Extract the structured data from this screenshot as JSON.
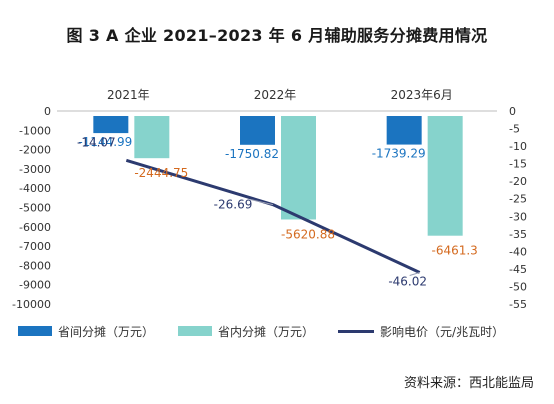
{
  "title": "图 3  A 企业 2021–2023 年 6 月辅助服务分摊费用情况",
  "source": "资料来源：西北能监局",
  "colors": {
    "inter_provincial": "#1b74c0",
    "intra_provincial": "#86d3cc",
    "price_line": "#2c3a6f",
    "label_orange": "#d46a1f",
    "label_blue": "#1b74c0",
    "label_dark": "#2c3a6f",
    "axis": "#333333"
  },
  "chart_data": {
    "type": "bar",
    "categories": [
      "2021年",
      "2022年",
      "2023年6月"
    ],
    "series": [
      {
        "name": "省间分摊（万元）",
        "kind": "bar",
        "axis": "left",
        "values": [
          -1144.99,
          -1750.82,
          -1739.29
        ]
      },
      {
        "name": "省内分摊（万元）",
        "kind": "bar",
        "axis": "left",
        "values": [
          -2444.75,
          -5620.88,
          -6461.3
        ]
      },
      {
        "name": "影响电价（元/兆瓦时）",
        "kind": "line",
        "axis": "right",
        "values": [
          -14.07,
          -26.69,
          -46.02
        ]
      }
    ],
    "data_labels": {
      "inter": [
        "-1144.99",
        "-1750.82",
        "-1739.29"
      ],
      "intra": [
        "-2444.75",
        "-5620.88",
        "-6461.3"
      ],
      "price": [
        "-14.07",
        "-26.69",
        "-46.02"
      ]
    },
    "y_left": {
      "range": [
        -10000,
        0
      ],
      "ticks": [
        0,
        -1000,
        -2000,
        -3000,
        -4000,
        -5000,
        -6000,
        -7000,
        -8000,
        -9000,
        -10000
      ],
      "tick_labels": [
        "0",
        "-1000",
        "-2000",
        "-3000",
        "-4000",
        "-5000",
        "-6000",
        "-7000",
        "-8000",
        "-9000",
        "-10000"
      ]
    },
    "y_right": {
      "range": [
        -55,
        0
      ],
      "ticks": [
        0,
        -5,
        -10,
        -15,
        -20,
        -25,
        -30,
        -35,
        -40,
        -45,
        -50,
        -55
      ],
      "tick_labels": [
        "0",
        "-5",
        "-10",
        "-15",
        "-20",
        "-25",
        "-30",
        "-35",
        "-40",
        "-45",
        "-50",
        "-55"
      ]
    },
    "category_axis_position": "top",
    "grid": false,
    "legend_position": "bottom"
  }
}
